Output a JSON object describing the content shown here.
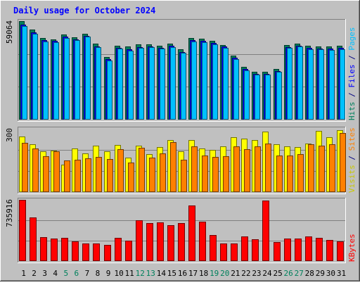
{
  "chart_data": {
    "type": "bar",
    "title": "Daily usage for October 2024",
    "categories": [
      "1",
      "2",
      "3",
      "4",
      "5",
      "6",
      "7",
      "8",
      "9",
      "10",
      "11",
      "12",
      "13",
      "14",
      "15",
      "16",
      "17",
      "18",
      "19",
      "20",
      "21",
      "22",
      "23",
      "24",
      "25",
      "26",
      "27",
      "28",
      "29",
      "30",
      "31"
    ],
    "weekend_days": [
      "5",
      "6",
      "12",
      "13",
      "19",
      "20",
      "26",
      "27"
    ],
    "panels": [
      {
        "id": "hits",
        "ymax_label": "59064",
        "ymax": 59064,
        "ylabel_parts": [
          {
            "text": "Hits",
            "color": "#00805c"
          },
          {
            "text": " / ",
            "color": "#000080"
          },
          {
            "text": "Files",
            "color": "#0000ff"
          },
          {
            "text": " / ",
            "color": "#000080"
          },
          {
            "text": "Pages",
            "color": "#00c0ff"
          }
        ],
        "series": [
          {
            "name": "Hits",
            "color": "#00805c",
            "values": [
              59064,
              54200,
              49000,
              48100,
              51000,
              49200,
              51600,
              45400,
              37400,
              44500,
              43700,
              45200,
              45200,
              44500,
              45400,
              42000,
              49000,
              48500,
              47200,
              44800,
              38200,
              31600,
              28600,
              28700,
              30400,
              44800,
              45700,
              44200,
              44000,
              43700,
              44100
            ]
          },
          {
            "name": "Files",
            "color": "#0000ff",
            "values": [
              56800,
              52400,
              47800,
              47100,
              49800,
              48200,
              50300,
              44000,
              36100,
              43200,
              42100,
              43600,
              44000,
              43200,
              44100,
              40600,
              47800,
              47300,
              46000,
              43700,
              37000,
              30300,
              27500,
              27600,
              29100,
              43600,
              44400,
              43000,
              42800,
              42500,
              42900
            ]
          },
          {
            "name": "Pages",
            "color": "#00c0ff",
            "values": [
              56000,
              51600,
              47000,
              46400,
              49100,
              47500,
              49600,
              43300,
              35500,
              42500,
              41500,
              43000,
              43300,
              42500,
              43400,
              39900,
              47000,
              46600,
              45300,
              43000,
              36300,
              29700,
              26900,
              27000,
              28500,
              42900,
              43700,
              42300,
              42100,
              41800,
              42200
            ]
          }
        ]
      },
      {
        "id": "visits",
        "ymax_label": "300",
        "ymax": 300,
        "ylabel_parts": [
          {
            "text": "Visits",
            "color": "#c8c800"
          },
          {
            "text": " / ",
            "color": "#000080"
          },
          {
            "text": "Sites",
            "color": "#ff8000"
          }
        ],
        "series": [
          {
            "name": "Visits",
            "color": "#ffff00",
            "values": [
              264,
              226,
              193,
              197,
              131,
              208,
              182,
              219,
              193,
              224,
              163,
              219,
              180,
              213,
              246,
              192,
              246,
              206,
              200,
              218,
              259,
              252,
              245,
              287,
              227,
              216,
              213,
              230,
              290,
              260,
              292
            ]
          },
          {
            "name": "Sites",
            "color": "#ff8000",
            "values": [
              232,
              205,
              169,
              193,
              150,
              152,
              160,
              166,
              156,
              204,
              140,
              209,
              164,
              183,
              237,
              153,
              218,
              173,
              167,
              169,
              216,
              202,
              217,
              230,
              173,
              174,
              179,
              226,
              219,
              225,
              281
            ]
          }
        ]
      },
      {
        "id": "kbytes",
        "ymax_label": "735916",
        "ymax": 735916,
        "ylabel_parts": [
          {
            "text": "KBytes",
            "color": "#ff0000"
          }
        ],
        "series": [
          {
            "name": "KBytes",
            "color": "#ff0000",
            "values": [
              735916,
              523300,
              291800,
              274300,
              280600,
              240200,
              207500,
              215200,
              192700,
              280800,
              242600,
              494400,
              457900,
              461500,
              427800,
              457200,
              671900,
              477100,
              317100,
              209500,
              211000,
              299300,
              262800,
              728000,
              231800,
              274600,
              269100,
              299300,
              280800,
              256000,
              240200
            ]
          }
        ]
      }
    ]
  }
}
